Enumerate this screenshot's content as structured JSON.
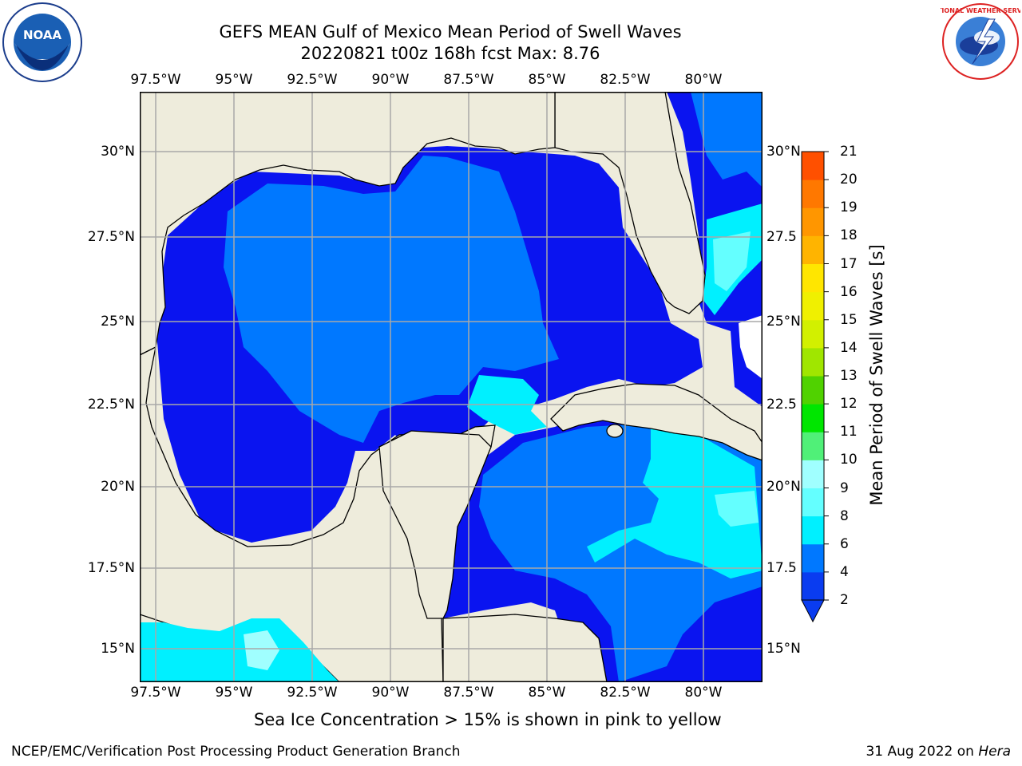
{
  "title": {
    "line1": "GEFS MEAN Gulf of Mexico Mean Period of Swell Waves",
    "line2": "20220821 t00z 168h fcst   Max: 8.76"
  },
  "logos": {
    "left": {
      "name": "noaa-logo",
      "text": "NOAA"
    },
    "right": {
      "name": "national-weather-service-logo",
      "text": "NATIONAL WEATHER SERVICE"
    }
  },
  "map": {
    "lon_ticks": [
      "97.5°W",
      "95°W",
      "92.5°W",
      "90°W",
      "87.5°W",
      "85°W",
      "82.5°W",
      "80°W"
    ],
    "lat_ticks_left": [
      "30°N",
      "27.5°N",
      "25°N",
      "22.5°N",
      "20°N",
      "17.5°N",
      "15°N"
    ],
    "lat_ticks_right": [
      "30°N",
      "27.5",
      "25°N",
      "22.5",
      "20°N",
      "17.5",
      "15°N"
    ],
    "colors": {
      "land": "#eeecdc",
      "ocean_dark": "#0a14f0",
      "ocean_mid": "#0078ff",
      "cyan": "#00f0ff",
      "light_cyan": "#64ffff",
      "pale_cyan": "#a0ffff"
    }
  },
  "colorbar": {
    "title": "Mean Period of Swell Waves [s]",
    "labels": [
      "2",
      "4",
      "6",
      "8",
      "9",
      "10",
      "11",
      "12",
      "13",
      "14",
      "15",
      "16",
      "17",
      "18",
      "19",
      "20",
      "21"
    ],
    "colors": [
      "#0a3cf0",
      "#0078ff",
      "#00f0ff",
      "#64ffff",
      "#a0ffff",
      "#50f078",
      "#00e600",
      "#50d200",
      "#a0e600",
      "#d2f000",
      "#f0f000",
      "#ffe600",
      "#ffb400",
      "#ff9600",
      "#ff7800",
      "#ff5000",
      "#ff0000"
    ]
  },
  "footer": {
    "caption": "Sea Ice Concentration > 15% is shown in pink to yellow",
    "credit": "NCEP/EMC/Verification Post Processing Product Generation Branch",
    "date": "31 Aug 2022 on",
    "machine": "Hera"
  }
}
